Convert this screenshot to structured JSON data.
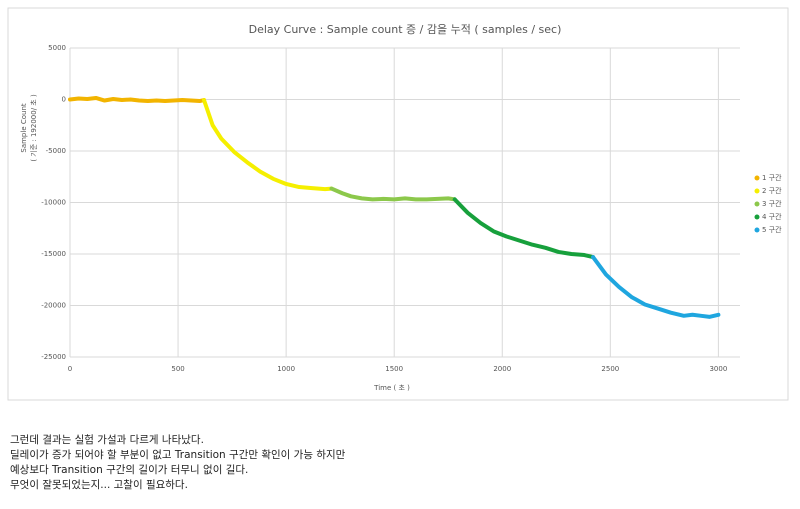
{
  "chart_data": {
    "type": "line",
    "title": "Delay Curve : Sample count 증 / 감을 누적 ( samples / sec)",
    "y_label": "Sample Count",
    "y_label_sub": "( 기준 : 192000/ 초 )",
    "x_label": "Time ( 초 )",
    "xlim": [
      0,
      3100
    ],
    "xticks": [
      0,
      500,
      1000,
      1500,
      2000,
      2500,
      3000
    ],
    "ylim": [
      -25000,
      5000
    ],
    "yticks": [
      5000,
      0,
      -5000,
      -10000,
      -15000,
      -20000,
      -25000
    ],
    "grid": true,
    "legend": "right",
    "series": [
      {
        "name": "1 구간",
        "color": "#f2b400",
        "x": [
          0,
          40,
          80,
          120,
          160,
          200,
          240,
          280,
          320,
          360,
          400,
          440,
          480,
          520,
          560,
          600,
          620
        ],
        "values": [
          0,
          100,
          50,
          150,
          -100,
          50,
          -50,
          0,
          -100,
          -150,
          -100,
          -150,
          -100,
          -50,
          -100,
          -150,
          -50
        ]
      },
      {
        "name": "2 구간",
        "color": "#f5ef00",
        "x": [
          620,
          660,
          700,
          760,
          820,
          880,
          940,
          1000,
          1060,
          1120,
          1180,
          1210
        ],
        "values": [
          -50,
          -2500,
          -3800,
          -5100,
          -6100,
          -7000,
          -7700,
          -8200,
          -8500,
          -8600,
          -8700,
          -8650
        ]
      },
      {
        "name": "3 구간",
        "color": "#8cc84b",
        "x": [
          1210,
          1260,
          1300,
          1350,
          1400,
          1450,
          1500,
          1550,
          1600,
          1650,
          1700,
          1750,
          1780
        ],
        "values": [
          -8650,
          -9100,
          -9400,
          -9600,
          -9700,
          -9650,
          -9700,
          -9600,
          -9700,
          -9700,
          -9650,
          -9600,
          -9700
        ]
      },
      {
        "name": "4 구간",
        "color": "#17a03c",
        "x": [
          1780,
          1840,
          1900,
          1960,
          2020,
          2080,
          2140,
          2200,
          2260,
          2320,
          2380,
          2420
        ],
        "values": [
          -9700,
          -11000,
          -12000,
          -12800,
          -13300,
          -13700,
          -14100,
          -14400,
          -14800,
          -15000,
          -15100,
          -15300
        ]
      },
      {
        "name": "5 구간",
        "color": "#1fa6df",
        "x": [
          2420,
          2480,
          2540,
          2600,
          2660,
          2720,
          2780,
          2840,
          2880,
          2920,
          2960,
          3000
        ],
        "values": [
          -15300,
          -17000,
          -18200,
          -19200,
          -19900,
          -20300,
          -20700,
          -21000,
          -20900,
          -21000,
          -21100,
          -20900
        ]
      }
    ]
  },
  "text": {
    "lines": [
      "그런데 결과는 실험 가설과 다르게 나타났다.",
      "딜레이가 증가 되어야 할 부분이 없고 Transition 구간만 확인이 가능 하지만",
      "예상보다 Transition 구간의 길이가 터무니 없이 길다.",
      "무엇이 잘못되었는지... 고찰이 필요하다."
    ]
  }
}
